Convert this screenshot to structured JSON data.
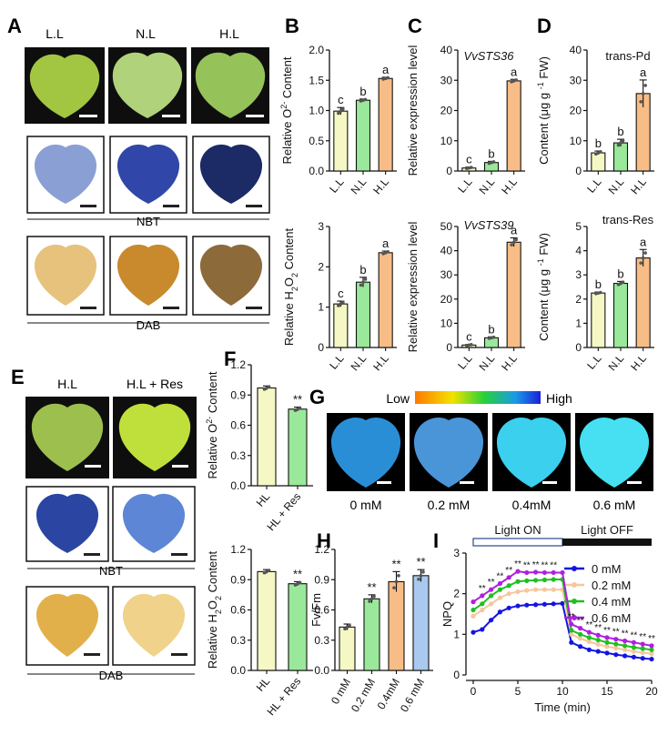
{
  "panels": {
    "A": "A",
    "B": "B",
    "C": "C",
    "D": "D",
    "E": "E",
    "F": "F",
    "G": "G",
    "H": "H",
    "I": "I"
  },
  "leafA": {
    "labels": [
      "L.L",
      "N.L",
      "H.L"
    ],
    "nbt": "NBT",
    "dab": "DAB"
  },
  "leafE": {
    "labels": [
      "H.L",
      "H.L + Res"
    ],
    "nbt": "NBT",
    "dab": "DAB"
  },
  "panelG": {
    "low": "Low",
    "high": "High",
    "labels": [
      "0 mM",
      "0.2 mM",
      "0.4mM",
      "0.6 mM"
    ]
  },
  "colors": {
    "LL": "#f5f8c4",
    "NL": "#9ae89a",
    "HL": "#f8bd86",
    "blue": "#a9c9ee",
    "I0": "#1414e0",
    "I02": "#f5c79e",
    "I04": "#1fbf1f",
    "I06": "#b01fe0"
  },
  "chart_data": [
    {
      "id": "B1",
      "type": "bar",
      "categories": [
        "L.L",
        "N.L",
        "H.L"
      ],
      "values": [
        0.99,
        1.17,
        1.53
      ],
      "errors": [
        0.06,
        0.02,
        0.02
      ],
      "sig": [
        "c",
        "b",
        "a"
      ],
      "ylabel": "Relative O2- Content",
      "ylim": [
        0,
        2.0
      ],
      "yticks": [
        0,
        0.5,
        1.0,
        1.5,
        2.0
      ],
      "yticklabels": [
        "0.0",
        "0.5",
        "1.0",
        "1.5",
        "2.0"
      ]
    },
    {
      "id": "B2",
      "type": "bar",
      "categories": [
        "L.L",
        "N.L",
        "H.L"
      ],
      "values": [
        1.08,
        1.62,
        2.35
      ],
      "errors": [
        0.07,
        0.12,
        0.04
      ],
      "sig": [
        "c",
        "b",
        "a"
      ],
      "ylabel": "Relative H2O2 Content",
      "ylim": [
        0,
        3
      ],
      "yticks": [
        0,
        1,
        2,
        3
      ],
      "yticklabels": [
        "0",
        "1",
        "2",
        "3"
      ]
    },
    {
      "id": "C1",
      "type": "bar",
      "title": "VvSTS36",
      "categories": [
        "L.L",
        "N.L",
        "H.L"
      ],
      "values": [
        1.0,
        2.8,
        29.8
      ],
      "errors": [
        0.3,
        0.4,
        0.5
      ],
      "sig": [
        "c",
        "b",
        "a"
      ],
      "ylabel": "Relative expression level",
      "ylim": [
        0,
        40
      ],
      "yticks": [
        0,
        10,
        20,
        30,
        40
      ],
      "yticklabels": [
        "0",
        "10",
        "20",
        "30",
        "40"
      ]
    },
    {
      "id": "C2",
      "type": "bar",
      "title": "VvSTS39",
      "categories": [
        "L.L",
        "N.L",
        "H.L"
      ],
      "values": [
        1.0,
        4.0,
        43.5
      ],
      "errors": [
        0.3,
        0.4,
        1.8
      ],
      "sig": [
        "c",
        "b",
        "a"
      ],
      "ylabel": "Relative expression level",
      "ylim": [
        0,
        50
      ],
      "yticks": [
        0,
        10,
        20,
        30,
        40,
        50
      ],
      "yticklabels": [
        "0",
        "10",
        "20",
        "30",
        "40",
        "50"
      ]
    },
    {
      "id": "D1",
      "type": "bar",
      "title": "trans-Pd",
      "categories": [
        "L.L",
        "N.L",
        "H.L"
      ],
      "values": [
        6.0,
        9.3,
        25.6
      ],
      "errors": [
        0.6,
        1.2,
        4.5
      ],
      "sig": [
        "b",
        "b",
        "a"
      ],
      "ylabel": "Content (μg g-1 FW)",
      "ylim": [
        0,
        40
      ],
      "yticks": [
        0,
        10,
        20,
        30,
        40
      ],
      "yticklabels": [
        "0",
        "10",
        "20",
        "30",
        "40"
      ]
    },
    {
      "id": "D2",
      "type": "bar",
      "title": "trans-Res",
      "categories": [
        "L.L",
        "N.L",
        "H.L"
      ],
      "values": [
        2.25,
        2.65,
        3.7
      ],
      "errors": [
        0.04,
        0.08,
        0.35
      ],
      "sig": [
        "b",
        "b",
        "a"
      ],
      "ylabel": "Content (μg g-1 FW)",
      "ylim": [
        0,
        5
      ],
      "yticks": [
        0,
        1,
        2,
        3,
        4,
        5
      ],
      "yticklabels": [
        "0",
        "1",
        "2",
        "3",
        "4",
        "5"
      ]
    },
    {
      "id": "F1",
      "type": "bar",
      "categories": [
        "HL",
        "HL + Res"
      ],
      "values": [
        0.97,
        0.76
      ],
      "errors": [
        0.02,
        0.02
      ],
      "sig": [
        "",
        "**"
      ],
      "ylabel": "Relative O2- Content",
      "ylim": [
        0,
        1.2
      ],
      "yticks": [
        0,
        0.3,
        0.6,
        0.9,
        1.2
      ],
      "yticklabels": [
        "0.0",
        "0.3",
        "0.6",
        "0.9",
        "1.2"
      ]
    },
    {
      "id": "F2",
      "type": "bar",
      "categories": [
        "HL",
        "HL + Res"
      ],
      "values": [
        0.98,
        0.86
      ],
      "errors": [
        0.02,
        0.02
      ],
      "sig": [
        "",
        "**"
      ],
      "ylabel": "Relative H2O2 Content",
      "ylim": [
        0,
        1.2
      ],
      "yticks": [
        0,
        0.3,
        0.6,
        0.9,
        1.2
      ],
      "yticklabels": [
        "0.0",
        "0.3",
        "0.6",
        "0.9",
        "1.2"
      ]
    },
    {
      "id": "H",
      "type": "bar",
      "categories": [
        "0 mM",
        "0.2 mM",
        "0.4mM",
        "0.6 mM"
      ],
      "values": [
        0.43,
        0.71,
        0.88,
        0.94
      ],
      "errors": [
        0.03,
        0.04,
        0.1,
        0.06
      ],
      "sig": [
        "",
        "**",
        "**",
        "**"
      ],
      "ylabel": "Fv/Fm",
      "ylim": [
        0,
        1.2
      ],
      "yticks": [
        0,
        0.3,
        0.6,
        0.9,
        1.2
      ],
      "yticklabels": [
        "0.0",
        "0.3",
        "0.6",
        "0.9",
        "1.2"
      ]
    },
    {
      "id": "I",
      "type": "line",
      "xlabel": "Time (min)",
      "ylabel": "NPQ",
      "xlim": [
        0,
        20
      ],
      "ylim": [
        0,
        3
      ],
      "xticks": [
        0,
        5,
        10,
        15,
        20
      ],
      "yticks": [
        0,
        1,
        2,
        3
      ],
      "light_on": "Light ON",
      "light_off": "Light OFF",
      "x": [
        0,
        1,
        2,
        3,
        4,
        5,
        6,
        7,
        8,
        9,
        10,
        11,
        12,
        13,
        14,
        15,
        16,
        17,
        18,
        19,
        20
      ],
      "series": [
        {
          "name": "0 mM",
          "values": [
            1.05,
            1.12,
            1.35,
            1.55,
            1.65,
            1.7,
            1.72,
            1.73,
            1.74,
            1.75,
            1.76,
            0.8,
            0.7,
            0.62,
            0.58,
            0.54,
            0.5,
            0.47,
            0.44,
            0.41,
            0.39
          ]
        },
        {
          "name": "0.2 mM",
          "values": [
            1.45,
            1.6,
            1.75,
            1.9,
            2.0,
            2.05,
            2.08,
            2.1,
            2.1,
            2.1,
            2.1,
            1.0,
            0.9,
            0.82,
            0.75,
            0.7,
            0.66,
            0.62,
            0.58,
            0.55,
            0.52
          ]
        },
        {
          "name": "0.4 mM",
          "values": [
            1.6,
            1.75,
            1.95,
            2.1,
            2.2,
            2.3,
            2.32,
            2.33,
            2.34,
            2.35,
            2.35,
            1.1,
            1.0,
            0.92,
            0.86,
            0.8,
            0.76,
            0.72,
            0.68,
            0.65,
            0.62
          ]
        },
        {
          "name": "0.6 mM",
          "values": [
            1.8,
            1.95,
            2.1,
            2.25,
            2.4,
            2.55,
            2.52,
            2.53,
            2.52,
            2.52,
            2.52,
            1.25,
            1.15,
            1.05,
            0.98,
            0.92,
            0.88,
            0.84,
            0.8,
            0.76,
            0.72
          ]
        }
      ]
    }
  ]
}
